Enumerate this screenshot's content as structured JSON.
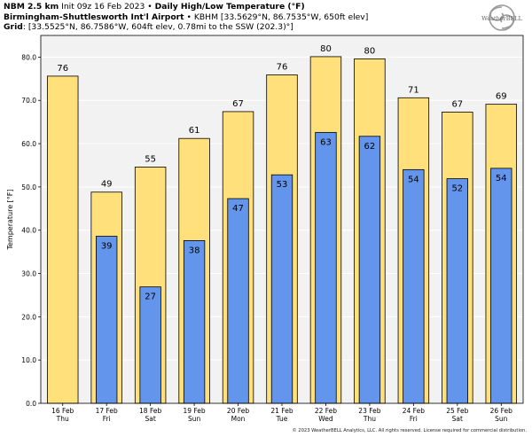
{
  "header": {
    "line1_bold_a": "NBM 2.5 km",
    "line1_init": "Init 09z 16 Feb 2023",
    "line1_sep": " • ",
    "line1_bold_b": "Daily High/Low Temperature (°F)",
    "line2_bold": "Birmingham-Shuttlesworth Int'l Airport",
    "line2_sep": " • ",
    "line2_rest": "KBHM [33.5629°N, 86.7535°W, 650ft elev]",
    "line3_bold": "Grid",
    "line3_rest": ": [33.5525°N, 86.7586°W, 604ft elev, 0.78mi to the SSW (202.3)°]"
  },
  "logo": {
    "text": "WeatherBELL"
  },
  "footer": {
    "text": "© 2023 WeatherBELL Analytics, LLC. All rights reserved. License required for commercial distribution."
  },
  "colors": {
    "high": "#ffe07a",
    "low": "#6495ed",
    "plot_bg": "#f2f2f2",
    "grid": "#ffffff",
    "bar_edge": "#000000"
  },
  "chart_data": {
    "type": "bar",
    "ylabel": "Temperature [°F]",
    "ylim": [
      0,
      85
    ],
    "yticks": [
      0,
      10,
      20,
      30,
      40,
      50,
      60,
      70,
      80
    ],
    "ytick_labels": [
      "0.0",
      "10.0",
      "20.0",
      "30.0",
      "40.0",
      "50.0",
      "60.0",
      "70.0",
      "80.0"
    ],
    "grid": true,
    "categories": [
      {
        "date": "16 Feb",
        "day": "Thu"
      },
      {
        "date": "17 Feb",
        "day": "Fri"
      },
      {
        "date": "18 Feb",
        "day": "Sat"
      },
      {
        "date": "19 Feb",
        "day": "Sun"
      },
      {
        "date": "20 Feb",
        "day": "Mon"
      },
      {
        "date": "21 Feb",
        "day": "Tue"
      },
      {
        "date": "22 Feb",
        "day": "Wed"
      },
      {
        "date": "23 Feb",
        "day": "Thu"
      },
      {
        "date": "24 Feb",
        "day": "Fri"
      },
      {
        "date": "25 Feb",
        "day": "Sat"
      },
      {
        "date": "26 Feb",
        "day": "Sun"
      }
    ],
    "series": [
      {
        "values": [
          75.6,
          48.8,
          54.6,
          61.2,
          67.4,
          75.9,
          80.1,
          79.6,
          70.6,
          67.3,
          69.1
        ],
        "labels": [
          "76",
          "49",
          "55",
          "61",
          "67",
          "76",
          "80",
          "80",
          "71",
          "67",
          "69"
        ]
      },
      {
        "values": [
          null,
          38.6,
          26.9,
          37.6,
          47.3,
          52.8,
          62.6,
          61.7,
          54.0,
          51.9,
          54.3
        ],
        "labels": [
          "",
          "39",
          "27",
          "38",
          "47",
          "53",
          "63",
          "62",
          "54",
          "52",
          "54"
        ]
      }
    ]
  }
}
